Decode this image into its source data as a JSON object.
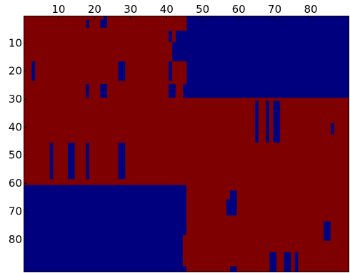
{
  "chart_data": {
    "type": "heatmap",
    "title": "",
    "xlabel": "",
    "ylabel": "",
    "x_axis_position": "top",
    "y_axis_direction": "top-to-bottom",
    "xlim": [
      0.5,
      90.5
    ],
    "ylim": [
      0.5,
      93.5
    ],
    "x_ticks": [
      10,
      20,
      30,
      40,
      50,
      60,
      70,
      80
    ],
    "y_ticks": [
      10,
      20,
      30,
      40,
      50,
      60,
      70,
      80
    ],
    "grid": false,
    "colormap": {
      "0": "#00007f",
      "1": "#7f0000"
    },
    "description_of_values": "binary matrix; 1 = dark red, 0 = dark blue",
    "row_spans_note": "each row lists [start_col, end_col] inclusive ranges of value 1; all other cells are 0",
    "rows": [
      [
        [
          1,
          22
        ],
        [
          24,
          45
        ]
      ],
      [
        [
          1,
          17
        ],
        [
          19,
          21
        ],
        [
          24,
          45
        ]
      ],
      [
        [
          1,
          17
        ],
        [
          19,
          21
        ],
        [
          24,
          45
        ]
      ],
      [
        [
          1,
          17
        ],
        [
          19,
          21
        ],
        [
          24,
          45
        ]
      ],
      [
        [
          1,
          45
        ]
      ],
      [
        [
          1,
          40
        ],
        [
          42,
          42
        ]
      ],
      [
        [
          1,
          40
        ],
        [
          42,
          42
        ]
      ],
      [
        [
          1,
          40
        ],
        [
          42,
          42
        ]
      ],
      [
        [
          1,
          40
        ],
        [
          42,
          42
        ]
      ],
      [
        [
          1,
          41
        ]
      ],
      [
        [
          1,
          41
        ]
      ],
      [
        [
          1,
          41
        ]
      ],
      [
        [
          1,
          41
        ]
      ],
      [
        [
          1,
          41
        ]
      ],
      [
        [
          1,
          41
        ]
      ],
      [
        [
          1,
          41
        ]
      ],
      [
        [
          1,
          2
        ],
        [
          4,
          26
        ],
        [
          29,
          40
        ],
        [
          42,
          45
        ]
      ],
      [
        [
          1,
          2
        ],
        [
          4,
          26
        ],
        [
          29,
          40
        ],
        [
          42,
          45
        ]
      ],
      [
        [
          1,
          2
        ],
        [
          4,
          26
        ],
        [
          29,
          40
        ],
        [
          42,
          45
        ]
      ],
      [
        [
          1,
          2
        ],
        [
          4,
          26
        ],
        [
          29,
          40
        ],
        [
          42,
          45
        ]
      ],
      [
        [
          1,
          2
        ],
        [
          4,
          26
        ],
        [
          29,
          40
        ],
        [
          42,
          45
        ]
      ],
      [
        [
          1,
          2
        ],
        [
          4,
          26
        ],
        [
          29,
          40
        ],
        [
          42,
          45
        ]
      ],
      [
        [
          1,
          2
        ],
        [
          4,
          26
        ],
        [
          29,
          40
        ],
        [
          42,
          45
        ]
      ],
      [
        [
          1,
          45
        ]
      ],
      [
        [
          1,
          17
        ],
        [
          19,
          21
        ],
        [
          24,
          40
        ],
        [
          43,
          44
        ]
      ],
      [
        [
          1,
          17
        ],
        [
          19,
          21
        ],
        [
          24,
          40
        ],
        [
          43,
          44
        ]
      ],
      [
        [
          1,
          17
        ],
        [
          19,
          21
        ],
        [
          24,
          40
        ],
        [
          43,
          44
        ]
      ],
      [
        [
          1,
          17
        ],
        [
          19,
          21
        ],
        [
          24,
          40
        ],
        [
          43,
          44
        ]
      ],
      [
        [
          1,
          17
        ],
        [
          19,
          21
        ],
        [
          24,
          40
        ],
        [
          43,
          44
        ]
      ],
      [
        [
          1,
          90
        ]
      ],
      [
        [
          1,
          64
        ],
        [
          66,
          67
        ],
        [
          69,
          69
        ],
        [
          72,
          90
        ]
      ],
      [
        [
          1,
          64
        ],
        [
          66,
          67
        ],
        [
          69,
          69
        ],
        [
          72,
          90
        ]
      ],
      [
        [
          1,
          64
        ],
        [
          66,
          67
        ],
        [
          69,
          69
        ],
        [
          72,
          90
        ]
      ],
      [
        [
          1,
          64
        ],
        [
          66,
          67
        ],
        [
          69,
          69
        ],
        [
          72,
          90
        ]
      ],
      [
        [
          1,
          64
        ],
        [
          66,
          67
        ],
        [
          69,
          69
        ],
        [
          72,
          90
        ]
      ],
      [
        [
          1,
          64
        ],
        [
          66,
          67
        ],
        [
          69,
          69
        ],
        [
          72,
          90
        ]
      ],
      [
        [
          1,
          64
        ],
        [
          66,
          67
        ],
        [
          69,
          69
        ],
        [
          72,
          90
        ]
      ],
      [
        [
          1,
          64
        ],
        [
          66,
          67
        ],
        [
          69,
          69
        ],
        [
          72,
          90
        ]
      ],
      [
        [
          1,
          64
        ],
        [
          66,
          67
        ],
        [
          69,
          69
        ],
        [
          72,
          85
        ],
        [
          87,
          90
        ]
      ],
      [
        [
          1,
          64
        ],
        [
          66,
          67
        ],
        [
          69,
          69
        ],
        [
          72,
          85
        ],
        [
          87,
          90
        ]
      ],
      [
        [
          1,
          64
        ],
        [
          66,
          67
        ],
        [
          69,
          69
        ],
        [
          72,
          85
        ],
        [
          87,
          90
        ]
      ],
      [
        [
          1,
          64
        ],
        [
          66,
          67
        ],
        [
          69,
          69
        ],
        [
          72,
          85
        ],
        [
          87,
          90
        ]
      ],
      [
        [
          1,
          64
        ],
        [
          66,
          67
        ],
        [
          69,
          69
        ],
        [
          72,
          90
        ]
      ],
      [
        [
          1,
          64
        ],
        [
          66,
          67
        ],
        [
          69,
          69
        ],
        [
          72,
          90
        ]
      ],
      [
        [
          1,
          64
        ],
        [
          66,
          67
        ],
        [
          69,
          69
        ],
        [
          72,
          90
        ]
      ],
      [
        [
          1,
          7
        ],
        [
          9,
          12
        ],
        [
          15,
          17
        ],
        [
          19,
          26
        ],
        [
          29,
          90
        ]
      ],
      [
        [
          1,
          7
        ],
        [
          9,
          12
        ],
        [
          15,
          17
        ],
        [
          19,
          26
        ],
        [
          29,
          90
        ]
      ],
      [
        [
          1,
          7
        ],
        [
          9,
          12
        ],
        [
          15,
          17
        ],
        [
          19,
          26
        ],
        [
          29,
          90
        ]
      ],
      [
        [
          1,
          7
        ],
        [
          9,
          12
        ],
        [
          15,
          17
        ],
        [
          19,
          26
        ],
        [
          29,
          90
        ]
      ],
      [
        [
          1,
          7
        ],
        [
          9,
          12
        ],
        [
          15,
          17
        ],
        [
          19,
          26
        ],
        [
          29,
          90
        ]
      ],
      [
        [
          1,
          7
        ],
        [
          9,
          12
        ],
        [
          15,
          17
        ],
        [
          19,
          26
        ],
        [
          29,
          90
        ]
      ],
      [
        [
          1,
          7
        ],
        [
          9,
          12
        ],
        [
          15,
          17
        ],
        [
          19,
          26
        ],
        [
          29,
          90
        ]
      ],
      [
        [
          1,
          7
        ],
        [
          9,
          12
        ],
        [
          15,
          17
        ],
        [
          19,
          26
        ],
        [
          29,
          90
        ]
      ],
      [
        [
          1,
          7
        ],
        [
          9,
          12
        ],
        [
          15,
          17
        ],
        [
          19,
          26
        ],
        [
          29,
          90
        ]
      ],
      [
        [
          1,
          7
        ],
        [
          9,
          12
        ],
        [
          15,
          17
        ],
        [
          19,
          26
        ],
        [
          29,
          90
        ]
      ],
      [
        [
          1,
          7
        ],
        [
          9,
          12
        ],
        [
          15,
          17
        ],
        [
          19,
          26
        ],
        [
          29,
          90
        ]
      ],
      [
        [
          1,
          7
        ],
        [
          9,
          12
        ],
        [
          15,
          17
        ],
        [
          19,
          26
        ],
        [
          29,
          90
        ]
      ],
      [
        [
          1,
          7
        ],
        [
          9,
          12
        ],
        [
          15,
          17
        ],
        [
          19,
          26
        ],
        [
          29,
          90
        ]
      ],
      [
        [
          1,
          90
        ]
      ],
      [
        [
          1,
          90
        ]
      ],
      [
        [
          46,
          90
        ]
      ],
      [
        [
          46,
          90
        ]
      ],
      [
        [
          46,
          57
        ],
        [
          60,
          90
        ]
      ],
      [
        [
          46,
          57
        ],
        [
          60,
          90
        ]
      ],
      [
        [
          46,
          57
        ],
        [
          60,
          90
        ]
      ],
      [
        [
          46,
          56
        ],
        [
          60,
          90
        ]
      ],
      [
        [
          46,
          56
        ],
        [
          60,
          90
        ]
      ],
      [
        [
          46,
          56
        ],
        [
          60,
          90
        ]
      ],
      [
        [
          46,
          56
        ],
        [
          60,
          90
        ]
      ],
      [
        [
          46,
          56
        ],
        [
          60,
          90
        ]
      ],
      [
        [
          46,
          56
        ],
        [
          60,
          90
        ]
      ],
      [
        [
          46,
          90
        ]
      ],
      [
        [
          46,
          90
        ]
      ],
      [
        [
          46,
          83
        ],
        [
          86,
          90
        ]
      ],
      [
        [
          46,
          83
        ],
        [
          86,
          90
        ]
      ],
      [
        [
          46,
          83
        ],
        [
          86,
          90
        ]
      ],
      [
        [
          46,
          83
        ],
        [
          86,
          90
        ]
      ],
      [
        [
          46,
          83
        ],
        [
          86,
          90
        ]
      ],
      [
        [
          45,
          83
        ],
        [
          86,
          90
        ]
      ],
      [
        [
          45,
          83
        ],
        [
          86,
          90
        ]
      ],
      [
        [
          45,
          90
        ]
      ],
      [
        [
          45,
          90
        ]
      ],
      [
        [
          45,
          90
        ]
      ],
      [
        [
          45,
          90
        ]
      ],
      [
        [
          45,
          68
        ],
        [
          71,
          72
        ],
        [
          75,
          75
        ],
        [
          77,
          90
        ]
      ],
      [
        [
          45,
          68
        ],
        [
          71,
          72
        ],
        [
          75,
          75
        ],
        [
          77,
          90
        ]
      ],
      [
        [
          45,
          68
        ],
        [
          71,
          72
        ],
        [
          75,
          75
        ],
        [
          77,
          90
        ]
      ],
      [
        [
          45,
          68
        ],
        [
          71,
          72
        ],
        [
          75,
          75
        ],
        [
          77,
          90
        ]
      ],
      [
        [
          45,
          68
        ],
        [
          71,
          72
        ],
        [
          75,
          75
        ],
        [
          77,
          90
        ]
      ],
      [
        [
          46,
          57
        ],
        [
          60,
          68
        ],
        [
          71,
          72
        ],
        [
          75,
          75
        ],
        [
          77,
          90
        ]
      ],
      [
        [
          46,
          57
        ],
        [
          60,
          68
        ],
        [
          71,
          72
        ],
        [
          75,
          75
        ],
        [
          77,
          90
        ]
      ]
    ]
  }
}
